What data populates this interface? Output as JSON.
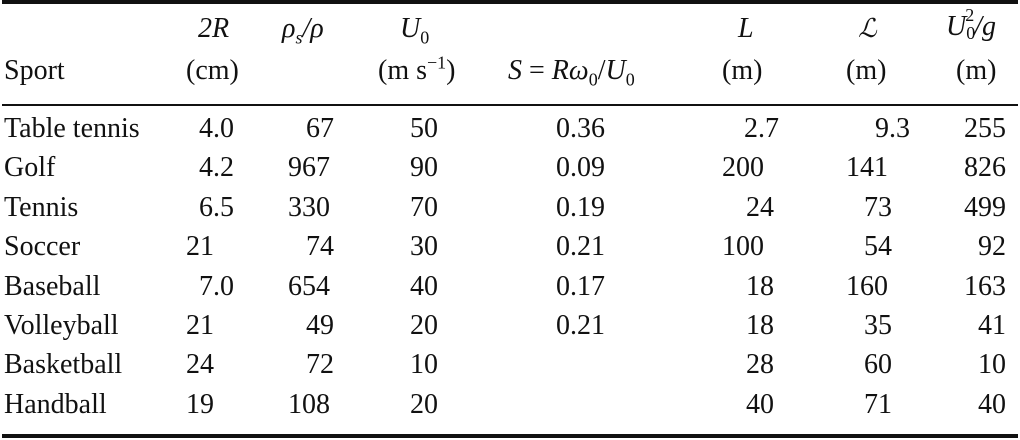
{
  "table": {
    "columns": [
      {
        "symbol": "",
        "unit": "Sport"
      },
      {
        "symbol": "2R",
        "unit": "(cm)"
      },
      {
        "symbol": "ρs/ρ",
        "unit": ""
      },
      {
        "symbol": "U0",
        "unit": "(m s−1)"
      },
      {
        "symbol": "",
        "unit": "S = Rω0/U0"
      },
      {
        "symbol": "L",
        "unit": "(m)"
      },
      {
        "symbol": "ℒ",
        "unit": "(m)"
      },
      {
        "symbol": "U0²/g",
        "unit": "(m)"
      }
    ],
    "rows": [
      {
        "sport": "Table tennis",
        "d": "4.0",
        "ratio": "67",
        "u0": "50",
        "s": "0.36",
        "L": "2.7",
        "Lc": "9.3",
        "u2g": "255"
      },
      {
        "sport": "Golf",
        "d": "4.2",
        "ratio": "967",
        "u0": "90",
        "s": "0.09",
        "L": "200",
        "Lc": "141",
        "u2g": "826"
      },
      {
        "sport": "Tennis",
        "d": "6.5",
        "ratio": "330",
        "u0": "70",
        "s": "0.19",
        "L": "24",
        "Lc": "73",
        "u2g": "499"
      },
      {
        "sport": "Soccer",
        "d": "21",
        "ratio": "74",
        "u0": "30",
        "s": "0.21",
        "L": "100",
        "Lc": "54",
        "u2g": "92"
      },
      {
        "sport": "Baseball",
        "d": "7.0",
        "ratio": "654",
        "u0": "40",
        "s": "0.17",
        "L": "18",
        "Lc": "160",
        "u2g": "163"
      },
      {
        "sport": "Volleyball",
        "d": "21",
        "ratio": "49",
        "u0": "20",
        "s": "0.21",
        "L": "18",
        "Lc": "35",
        "u2g": "41"
      },
      {
        "sport": "Basketball",
        "d": "24",
        "ratio": "72",
        "u0": "10",
        "s": "",
        "L": "28",
        "Lc": "60",
        "u2g": "10"
      },
      {
        "sport": "Handball",
        "d": "19",
        "ratio": "108",
        "u0": "20",
        "s": "",
        "L": "40",
        "Lc": "71",
        "u2g": "40"
      }
    ]
  }
}
